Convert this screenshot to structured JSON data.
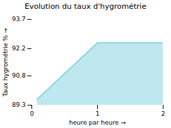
{
  "chart_data": {
    "type": "area",
    "title": "Evolution du taux d'hygrométrie",
    "xlabel": "heure par heure",
    "ylabel": "Taux hygrométrie %",
    "x": [
      0.08,
      1.0,
      2.0
    ],
    "values": [
      89.6,
      92.5,
      92.5
    ],
    "color": "#7dd0e0",
    "xlim": [
      0,
      2
    ],
    "ylim": [
      89.3,
      93.7
    ],
    "xticks": [
      0,
      1,
      2
    ],
    "yticks": [
      89.3,
      90.8,
      92.2,
      93.7
    ],
    "grid": false
  }
}
